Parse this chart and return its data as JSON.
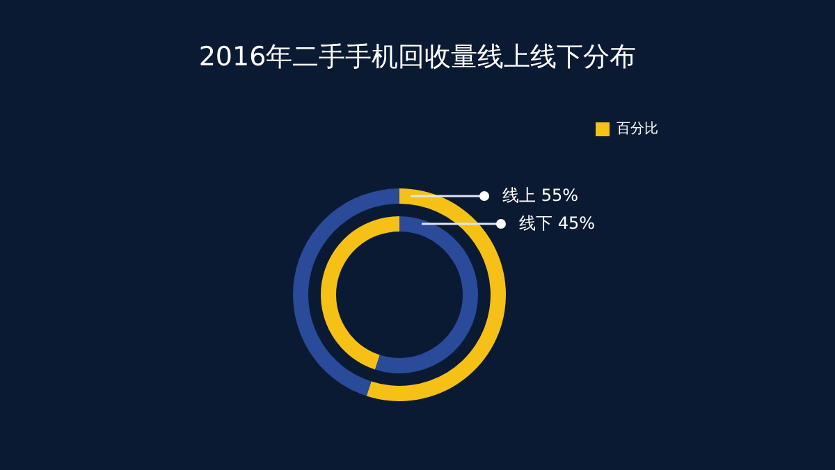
{
  "chart_data": {
    "type": "donut",
    "title": "2016年二手手机回收量线上线下分布",
    "categories": [
      "百分比",
      null
    ],
    "series": [
      {
        "name": "线上",
        "colors": [
          "#f5c116",
          "#2a4a9a"
        ],
        "values": [
          55,
          45
        ],
        "value_labels": [
          "55%",
          null
        ]
      },
      {
        "name": "线下",
        "colors": [
          "#f5c116",
          "#2a4a9a"
        ],
        "values": [
          45,
          55
        ],
        "value_labels": [
          "45%",
          null
        ]
      }
    ],
    "legend": "top right"
  }
}
